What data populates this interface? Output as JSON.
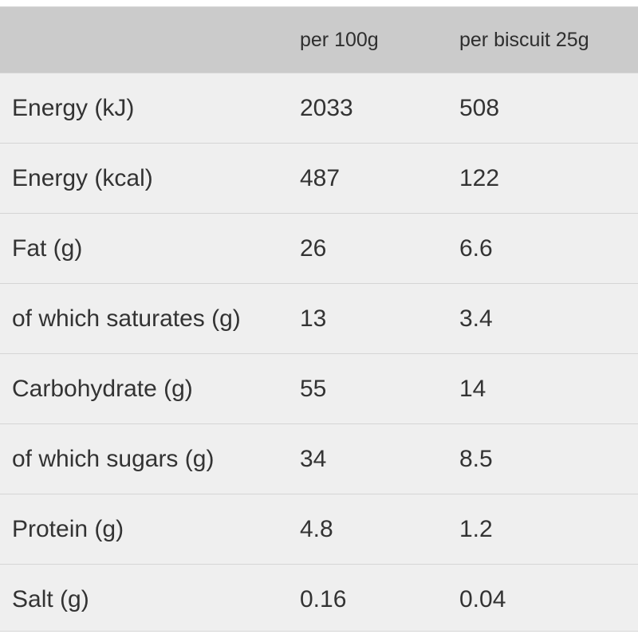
{
  "table": {
    "headers": {
      "label": "",
      "per_100g": "per 100g",
      "per_biscuit": "per biscuit 25g"
    },
    "rows": [
      {
        "label": "Energy (kJ)",
        "per_100g": "2033",
        "per_biscuit": "508"
      },
      {
        "label": "Energy (kcal)",
        "per_100g": "487",
        "per_biscuit": "122"
      },
      {
        "label": "Fat (g)",
        "per_100g": "26",
        "per_biscuit": "6.6"
      },
      {
        "label": "of which saturates (g)",
        "per_100g": "13",
        "per_biscuit": "3.4"
      },
      {
        "label": "Carbohydrate (g)",
        "per_100g": "55",
        "per_biscuit": "14"
      },
      {
        "label": "of which sugars (g)",
        "per_100g": "34",
        "per_biscuit": "8.5"
      },
      {
        "label": "Protein (g)",
        "per_100g": "4.8",
        "per_biscuit": "1.2"
      },
      {
        "label": "Salt (g)",
        "per_100g": "0.16",
        "per_biscuit": "0.04"
      }
    ]
  },
  "colors": {
    "header_background": "#cbcbcb",
    "body_background": "#efefef",
    "divider": "#d5d5d5",
    "text": "#333333"
  }
}
